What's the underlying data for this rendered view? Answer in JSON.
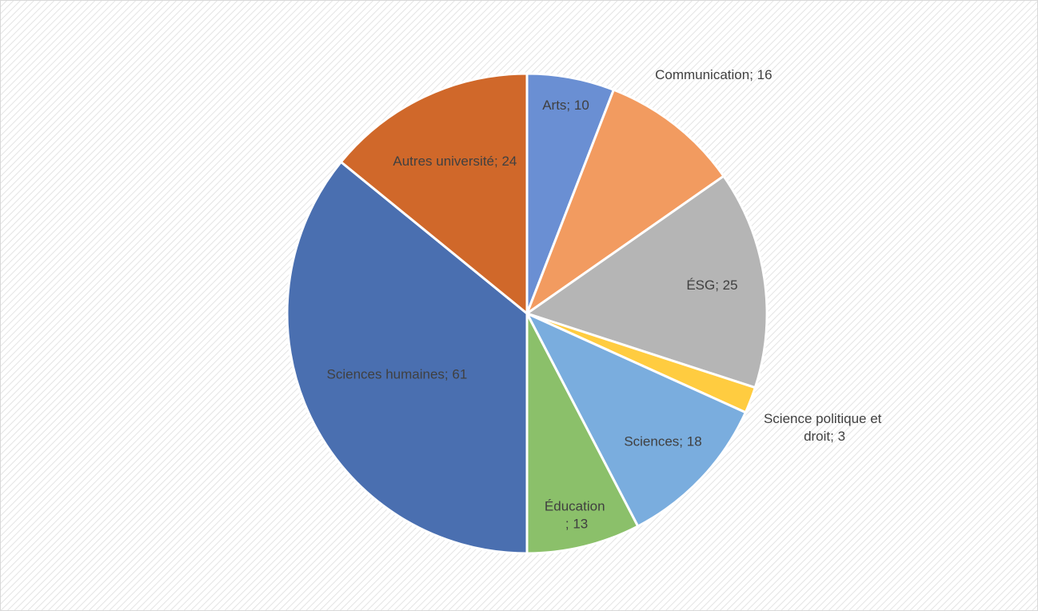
{
  "chart_data": {
    "type": "pie",
    "values": [
      10,
      16,
      25,
      3,
      18,
      13,
      61,
      24
    ],
    "value_labels": [
      "Arts; 10",
      "Communication; 16",
      "ÉSG; 25",
      "Science politique et droit; 3",
      "Sciences; 18",
      "Éducation ; 13",
      "Sciences humaines; 61",
      "Autres université; 24"
    ],
    "colors": [
      "#6a8fd3",
      "#f29b60",
      "#b5b5b5",
      "#ffcc40",
      "#7aadde",
      "#8bc06a",
      "#4a6fb0",
      "#d0682a"
    ]
  }
}
